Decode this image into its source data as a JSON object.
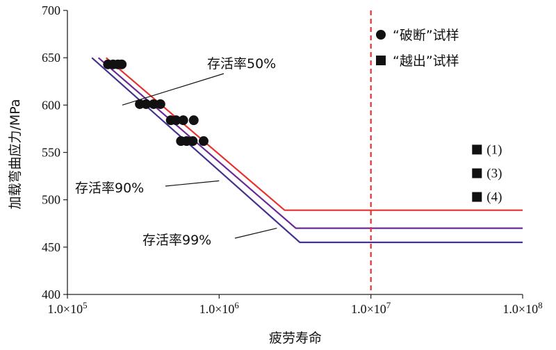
{
  "chart_data": {
    "type": "line",
    "xlabel": "疲劳寿命",
    "ylabel": "加载弯曲应力/MPa",
    "x_scale": "log",
    "xlim": [
      100000,
      100000000
    ],
    "ylim": [
      400,
      700
    ],
    "x_ticks": [
      {
        "value": 100000,
        "label": "1.0×10",
        "exp": "5"
      },
      {
        "value": 1000000,
        "label": "1.0×10",
        "exp": "6"
      },
      {
        "value": 10000000,
        "label": "1.0×10",
        "exp": "7"
      },
      {
        "value": 100000000,
        "label": "1.0×10",
        "exp": "8"
      }
    ],
    "y_ticks": [
      400,
      450,
      500,
      550,
      600,
      650,
      700
    ],
    "grid": false,
    "series": [
      {
        "name": "存活率50%",
        "color": "#e8312f",
        "points": [
          [
            180000,
            650
          ],
          [
            2700000,
            489
          ],
          [
            100000000,
            489
          ]
        ]
      },
      {
        "name": "存活率90%",
        "color": "#6a2a96",
        "points": [
          [
            160000,
            650
          ],
          [
            3200000,
            470
          ],
          [
            100000000,
            470
          ]
        ]
      },
      {
        "name": "存活率99%",
        "color": "#43338f",
        "points": [
          [
            145000,
            650
          ],
          [
            3400000,
            455
          ],
          [
            100000000,
            455
          ]
        ]
      }
    ],
    "annotations": [
      {
        "text": "存活率50%",
        "series": 0
      },
      {
        "text": "存活率90%",
        "series": 1
      },
      {
        "text": "存活率99%",
        "series": 2
      }
    ],
    "vertical_line": {
      "x": 10000000,
      "color": "#e8312f",
      "style": "dashed"
    },
    "fracture_points": [
      [
        185000,
        643
      ],
      [
        200000,
        643
      ],
      [
        215000,
        643
      ],
      [
        228000,
        643
      ],
      [
        300000,
        601
      ],
      [
        330000,
        601
      ],
      [
        370000,
        601
      ],
      [
        410000,
        601
      ],
      [
        480000,
        584
      ],
      [
        520000,
        584
      ],
      [
        580000,
        584
      ],
      [
        680000,
        584
      ],
      [
        560000,
        562
      ],
      [
        610000,
        562
      ],
      [
        670000,
        562
      ],
      [
        790000,
        562
      ]
    ],
    "runout_points": [
      {
        "x": 50000000,
        "y": 553,
        "label": "(1)"
      },
      {
        "x": 50000000,
        "y": 528,
        "label": "(3)"
      },
      {
        "x": 50000000,
        "y": 503,
        "label": "(4)"
      }
    ],
    "legend": {
      "position": "top-right",
      "items": [
        {
          "marker": "circle",
          "label": "“破断”试样"
        },
        {
          "marker": "square",
          "label": "“越出”试样"
        }
      ]
    }
  }
}
